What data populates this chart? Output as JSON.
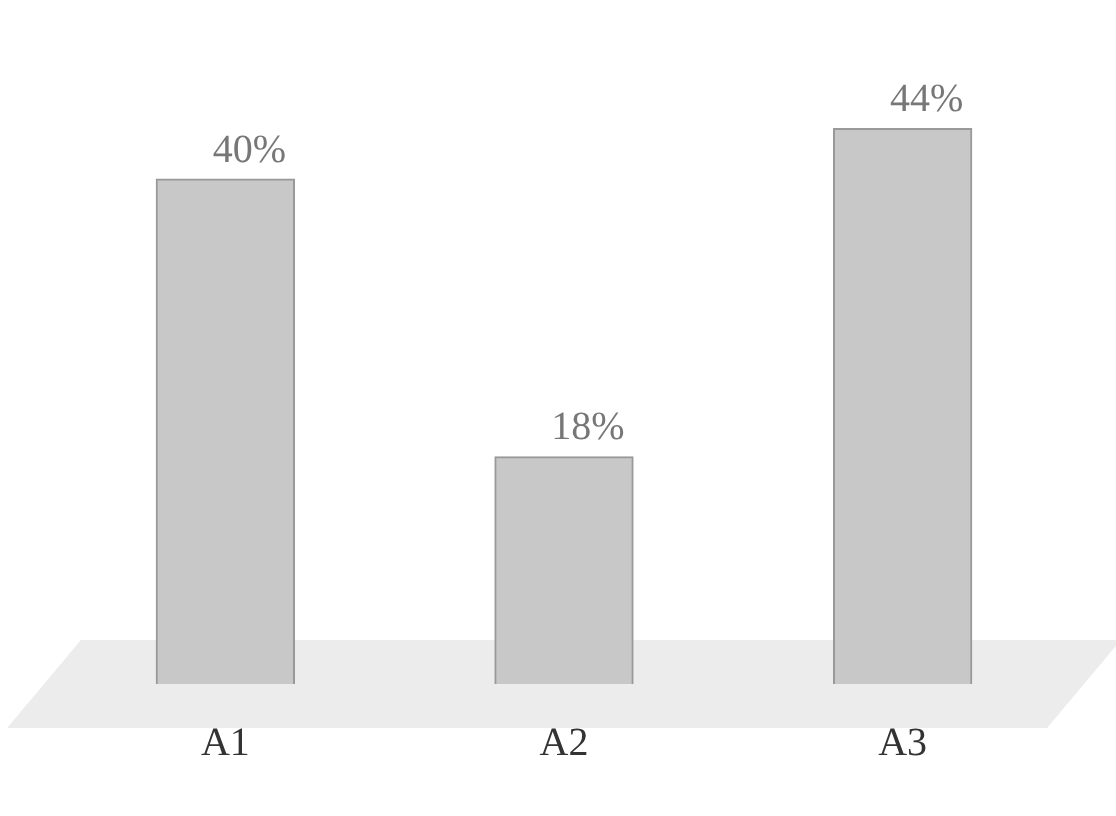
{
  "chart_data": {
    "type": "bar",
    "categories": [
      "A1",
      "A2",
      "A3"
    ],
    "values": [
      40,
      18,
      44
    ],
    "color": "#c8c8c8",
    "value_labels": [
      "40%",
      "18%",
      "44%"
    ]
  }
}
